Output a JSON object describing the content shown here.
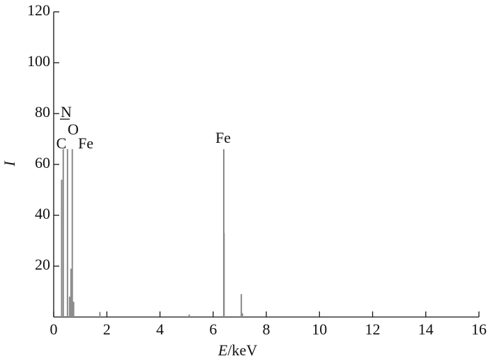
{
  "chart_data": {
    "type": "spectrum",
    "xlabel": {
      "var": "E",
      "unit": "/keV"
    },
    "ylabel": "I",
    "x": [
      0.3,
      0.36,
      0.52,
      0.6,
      0.65,
      0.7,
      0.75,
      1.74,
      5.1,
      6.4,
      6.41,
      7.06,
      7.1
    ],
    "values": [
      54,
      66,
      66,
      8,
      19,
      66,
      6,
      2,
      1,
      66,
      33,
      9,
      1.5
    ],
    "color": "#888888",
    "xlim": [
      0,
      16
    ],
    "ylim": [
      0,
      120
    ],
    "xticks": [
      0,
      2,
      4,
      6,
      8,
      10,
      12,
      14,
      16
    ],
    "yticks": [
      20,
      40,
      60,
      80,
      100,
      120
    ],
    "annotations": [
      "C",
      "N",
      "O",
      "Fe",
      "Fe"
    ]
  }
}
